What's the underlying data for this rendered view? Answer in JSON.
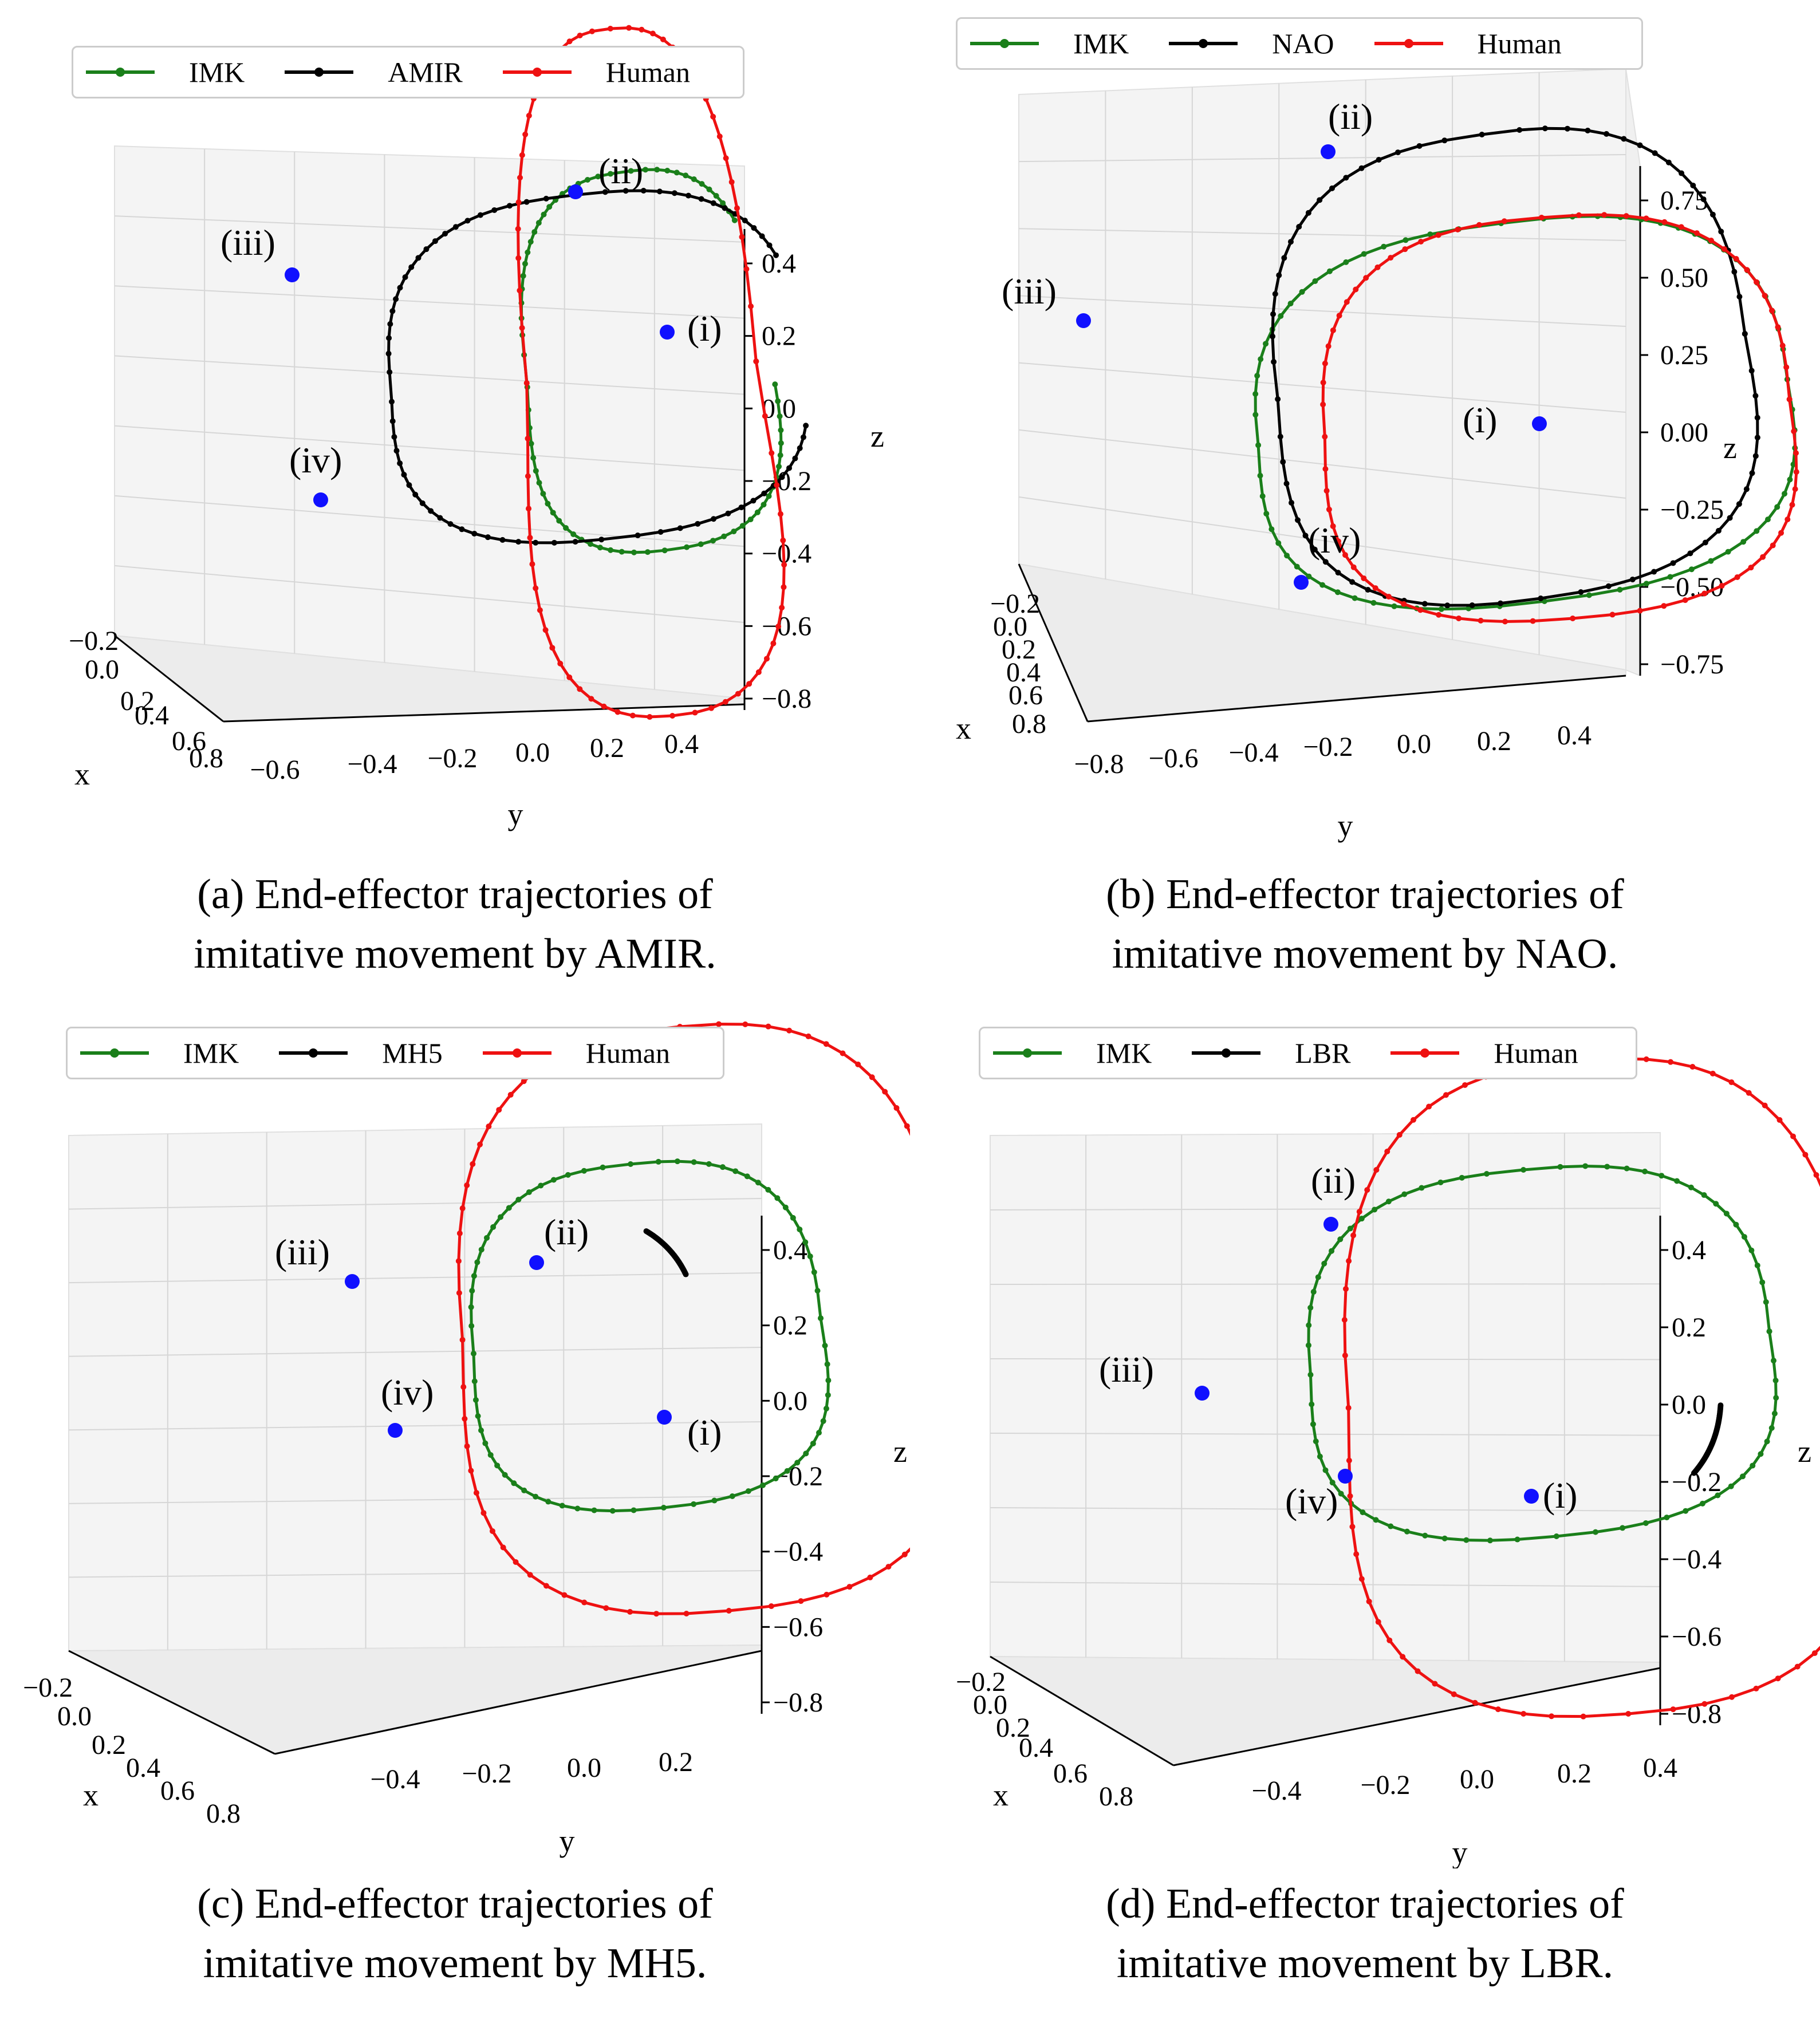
{
  "chart_data": [
    {
      "type": "line",
      "title": "",
      "caption_line1": "(a) End-effector trajectories of",
      "caption_line2": "imitative movement by AMIR.",
      "legend": [
        "IMK",
        "AMIR",
        "Human"
      ],
      "series_colors": [
        "#1a7f1a",
        "#000000",
        "#ee1111"
      ],
      "xlabel": "x",
      "ylabel": "y",
      "zlabel": "z",
      "x_ticks": [
        "−0.2",
        "0.0",
        "0.2",
        "0.4",
        "0.6",
        "0.8"
      ],
      "y_ticks": [
        "−0.6",
        "−0.4",
        "−0.2",
        "0.0",
        "0.2",
        "0.4"
      ],
      "z_ticks": [
        "0.4",
        "0.2",
        "0.0",
        "−0.2",
        "−0.4",
        "−0.6",
        "−0.8"
      ],
      "zlim": [
        -0.8,
        0.4
      ],
      "markers": [
        "(i)",
        "(ii)",
        "(iii)",
        "(iv)"
      ]
    },
    {
      "type": "line",
      "title": "",
      "caption_line1": "(b) End-effector trajectories of",
      "caption_line2": "imitative movement by NAO.",
      "legend": [
        "IMK",
        "NAO",
        "Human"
      ],
      "series_colors": [
        "#1a7f1a",
        "#000000",
        "#ee1111"
      ],
      "xlabel": "x",
      "ylabel": "y",
      "zlabel": "z",
      "x_ticks": [
        "−0.2",
        "0.0",
        "0.2",
        "0.4",
        "0.6",
        "0.8"
      ],
      "y_ticks": [
        "−0.8",
        "−0.6",
        "−0.4",
        "−0.2",
        "0.0",
        "0.2",
        "0.4"
      ],
      "z_ticks": [
        "0.75",
        "0.50",
        "0.25",
        "0.00",
        "−0.25",
        "−0.50",
        "−0.75"
      ],
      "zlim": [
        -0.75,
        0.75
      ],
      "markers": [
        "(i)",
        "(ii)",
        "(iii)",
        "(iv)"
      ]
    },
    {
      "type": "line",
      "title": "",
      "caption_line1": "(c) End-effector trajectories of",
      "caption_line2": "imitative movement by MH5.",
      "legend": [
        "IMK",
        "MH5",
        "Human"
      ],
      "series_colors": [
        "#1a7f1a",
        "#000000",
        "#ee1111"
      ],
      "xlabel": "x",
      "ylabel": "y",
      "zlabel": "z",
      "x_ticks": [
        "−0.2",
        "0.0",
        "0.2",
        "0.4",
        "0.6",
        "0.8"
      ],
      "y_ticks": [
        "−0.4",
        "−0.2",
        "0.0",
        "0.2"
      ],
      "z_ticks": [
        "0.4",
        "0.2",
        "0.0",
        "−0.2",
        "−0.4",
        "−0.6",
        "−0.8"
      ],
      "zlim": [
        -0.8,
        0.4
      ],
      "markers": [
        "(i)",
        "(ii)",
        "(iii)",
        "(iv)"
      ]
    },
    {
      "type": "line",
      "title": "",
      "caption_line1": "(d) End-effector trajectories of",
      "caption_line2": "imitative movement by LBR.",
      "legend": [
        "IMK",
        "LBR",
        "Human"
      ],
      "series_colors": [
        "#1a7f1a",
        "#000000",
        "#ee1111"
      ],
      "xlabel": "x",
      "ylabel": "y",
      "zlabel": "z",
      "x_ticks": [
        "−0.2",
        "0.0",
        "0.2",
        "0.4",
        "0.6",
        "0.8"
      ],
      "y_ticks": [
        "−0.4",
        "−0.2",
        "0.0",
        "0.2",
        "0.4"
      ],
      "z_ticks": [
        "0.4",
        "0.2",
        "0.0",
        "−0.2",
        "−0.4",
        "−0.6",
        "−0.8"
      ],
      "zlim": [
        -0.8,
        0.4
      ],
      "markers": [
        "(i)",
        "(ii)",
        "(iii)",
        "(iv)"
      ]
    }
  ]
}
